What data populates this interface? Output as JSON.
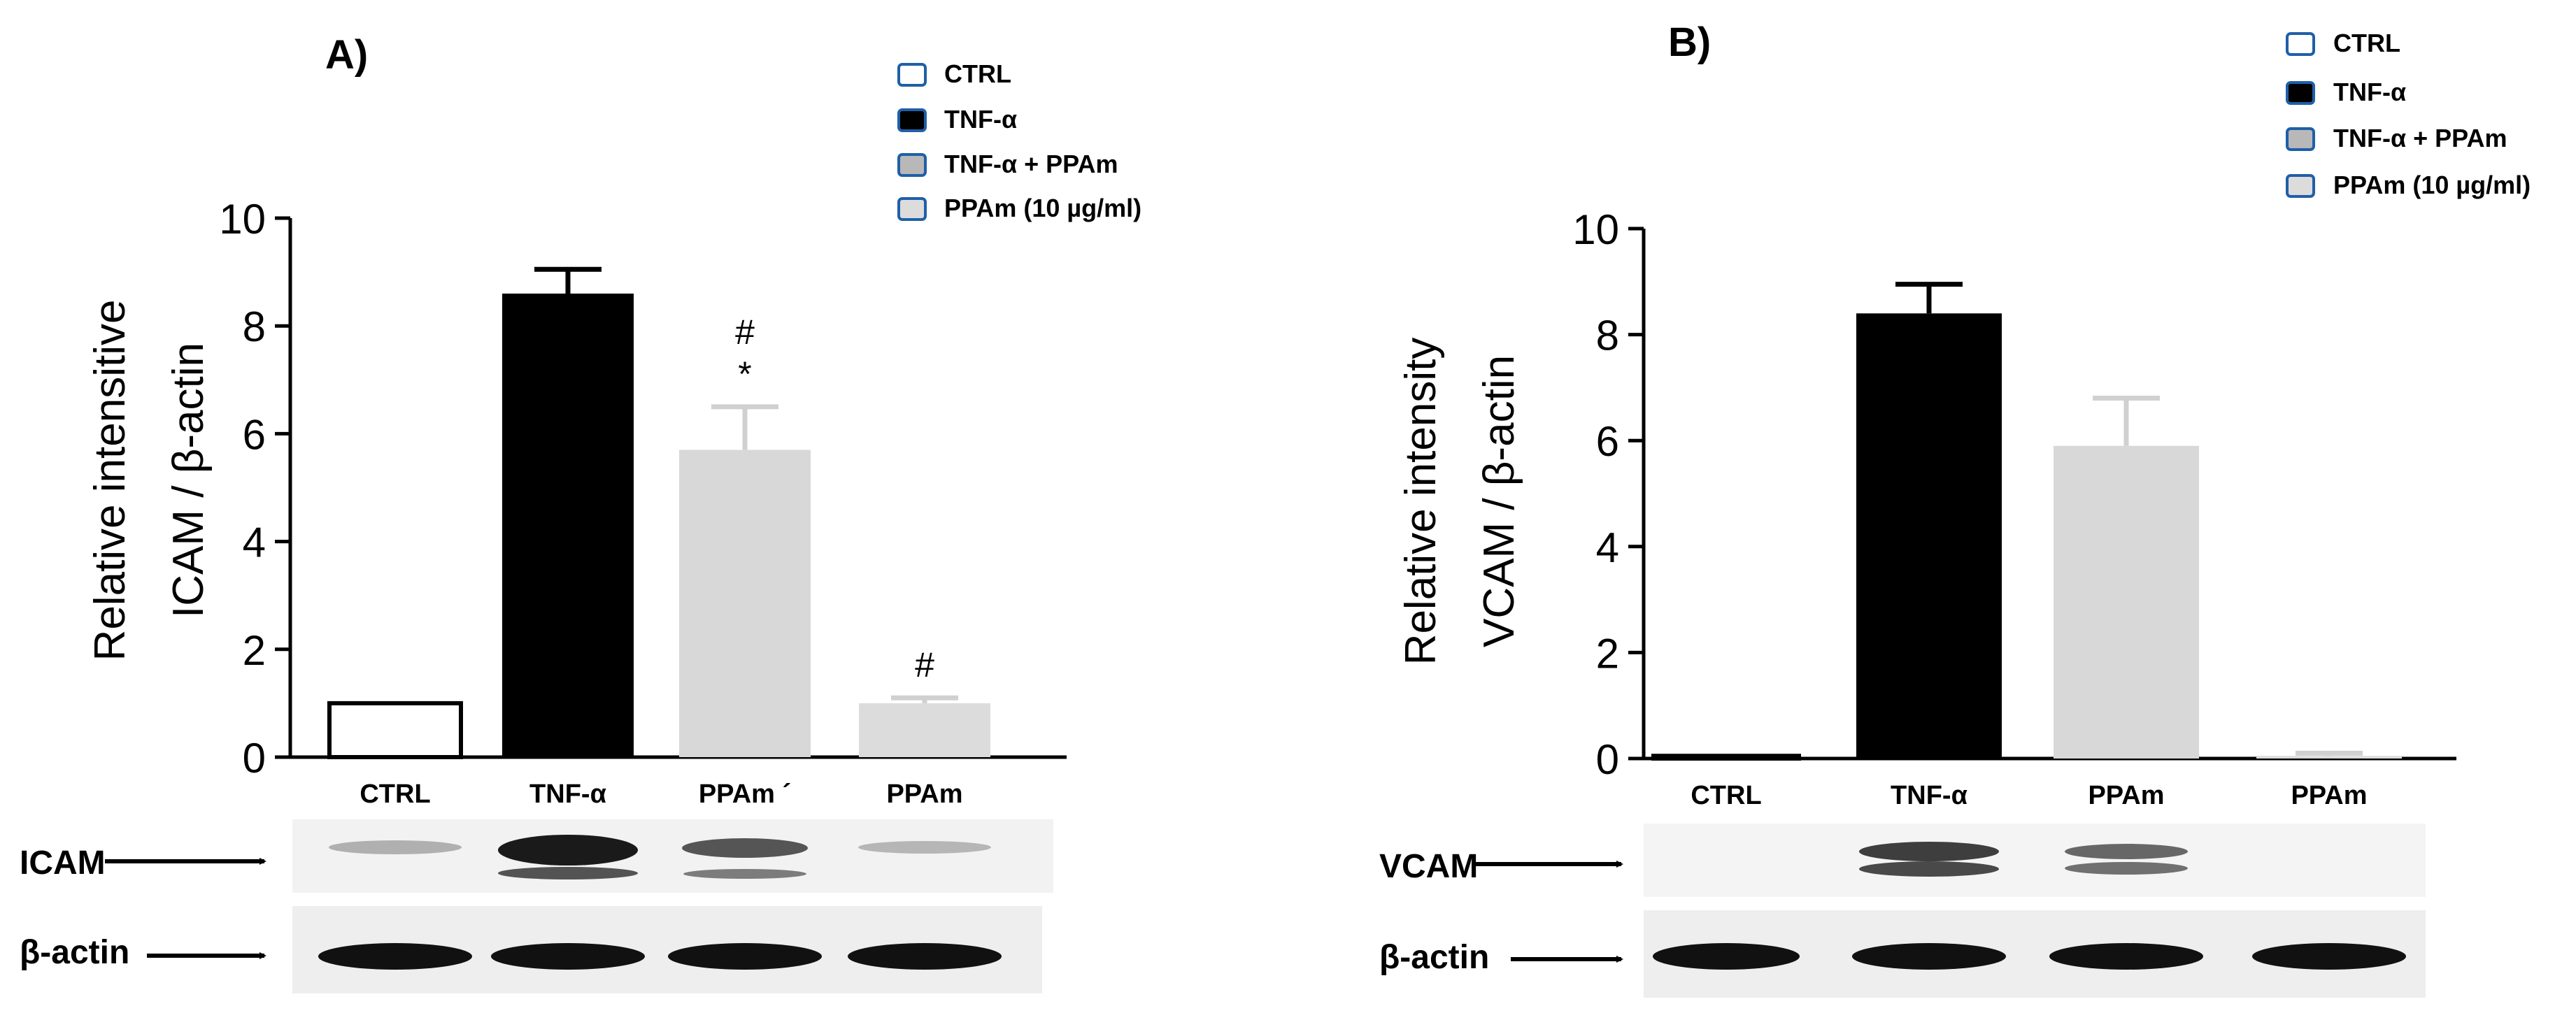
{
  "panel_a": {
    "label": "A)",
    "legend": [
      {
        "label": "CTRL",
        "fill": "#ffffff"
      },
      {
        "label": "TNF-α",
        "fill": "#000000"
      },
      {
        "label": "TNF-α + PPAm",
        "fill": "#c8c8c8"
      },
      {
        "label": "PPAm (10 µg/ml)",
        "fill": "#dcdcdc"
      }
    ],
    "blots": {
      "target": "ICAM",
      "control": "β-actin"
    }
  },
  "panel_b": {
    "label": "B)",
    "legend": [
      {
        "label": "CTRL",
        "fill": "#ffffff"
      },
      {
        "label": "TNF-α",
        "fill": "#000000"
      },
      {
        "label": "TNF-α + PPAm",
        "fill": "#c8c8c8"
      },
      {
        "label": "PPAm (10 µg/ml)",
        "fill": "#dcdcdc"
      }
    ],
    "blots": {
      "target": "VCAM",
      "control": "β-actin"
    }
  },
  "colors": {
    "legend_border": "#1f5fa8",
    "ctrl": "#ffffff",
    "tnf": "#000000",
    "ppam_combo": "#d8d8d8",
    "ppam": "#dcdcdc"
  },
  "chart_data": [
    {
      "type": "bar",
      "title": "",
      "ylabel_line1": "Relative intensitive",
      "ylabel_line2": "ICAM / β-actin",
      "xlabel": "",
      "categories": [
        "CTRL",
        "TNF-α",
        "PPAm ´",
        "PPAm"
      ],
      "values": [
        1.0,
        8.6,
        5.7,
        1.0
      ],
      "errors": [
        0.0,
        0.45,
        0.8,
        0.1
      ],
      "annotations": [
        "",
        "",
        "#\n*",
        "#"
      ],
      "ylim": [
        0,
        10
      ],
      "yticks": [
        0,
        2,
        4,
        6,
        8,
        10
      ],
      "fills": [
        "#ffffff",
        "#000000",
        "#d8d8d8",
        "#dcdcdc"
      ],
      "grid": false
    },
    {
      "type": "bar",
      "title": "",
      "ylabel_line1": "Relative intensity",
      "ylabel_line2": "VCAM / β-actin",
      "xlabel": "",
      "categories": [
        "CTRL",
        "TNF-α",
        "PPAm",
        "PPAm"
      ],
      "values": [
        0.05,
        8.4,
        5.9,
        0.05
      ],
      "errors": [
        0.0,
        0.55,
        0.9,
        0.05
      ],
      "annotations": [
        "",
        "",
        "",
        ""
      ],
      "ylim": [
        0,
        10
      ],
      "yticks": [
        0,
        2,
        4,
        6,
        8,
        10
      ],
      "fills": [
        "#ffffff",
        "#000000",
        "#d8d8d8",
        "#dcdcdc"
      ],
      "grid": false
    }
  ]
}
